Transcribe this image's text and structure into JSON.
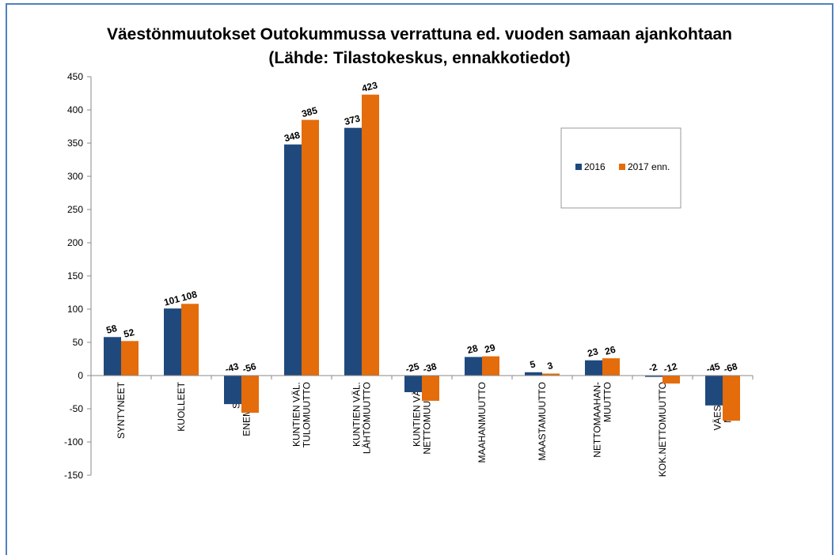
{
  "chart_data": {
    "type": "bar",
    "title": "Väestönmuutokset Outokummussa verrattuna ed. vuoden samaan ajankohtaan (Lähde: Tilastokeskus, ennakkotiedot)",
    "categories": [
      "SYNTYNEET",
      "KUOLLEET",
      "SYNT.\nENEMMYYS",
      "KUNTIEN VÄL.\nTULOMUUTTO",
      "KUNTIEN VÄL.\nLÄHTÖMUUTTO",
      "KUNTIEN VÄL.\nNETTOMUUTTO",
      "MAAHANMUUTTO",
      "MAASTAMUUTTO",
      "NETTOMAAHAN-\nMUUTTO",
      "KOK.NETTOMUUTTO",
      "VÄESTÖN-\nMUUTOS"
    ],
    "series": [
      {
        "name": "2016",
        "color": "#1f497d",
        "values": [
          58,
          101,
          -43,
          348,
          373,
          -25,
          28,
          5,
          23,
          -2,
          -45
        ]
      },
      {
        "name": "2017 enn.",
        "color": "#e46c0a",
        "values": [
          52,
          108,
          -56,
          385,
          423,
          -38,
          29,
          3,
          26,
          -12,
          -68
        ]
      }
    ],
    "ylim": [
      -150,
      450
    ],
    "yticks": [
      -150,
      -100,
      -50,
      0,
      50,
      100,
      150,
      200,
      250,
      300,
      350,
      400,
      450
    ],
    "grid": false,
    "legend": "right"
  }
}
